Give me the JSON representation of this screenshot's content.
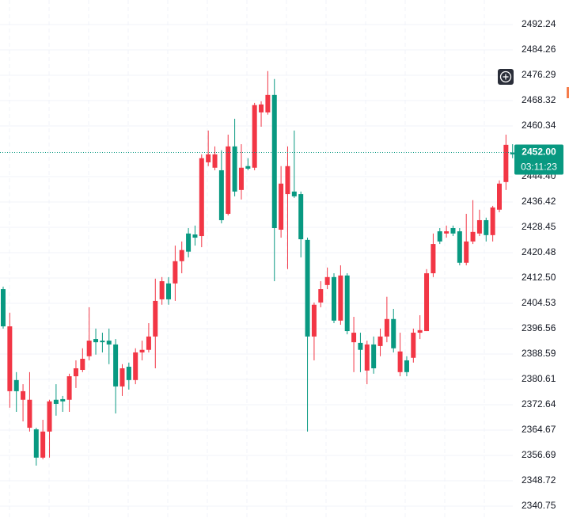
{
  "chart_data": {
    "type": "candlestick",
    "up_color": "#089981",
    "down_color": "#f23645",
    "open": [
      2397.3,
      2397.3,
      2376.9,
      2376.9,
      2374.2,
      2356.0,
      2364.2,
      2373.7,
      2372.9,
      2373.7,
      2381.6,
      2384.1,
      2387.1,
      2392.8,
      2392.3,
      2392.3,
      2391.6,
      2378.4,
      2384.1,
      2380.4,
      2389.1,
      2389.9,
      2394.1,
      2405.3,
      2411.5,
      2405.8,
      2417.8,
      2421.3,
      2420.8,
      2425.2,
      2450.2,
      2451.4,
      2451.4,
      2430.7,
      2453.9,
      2439.7,
      2447.2,
      2446.9,
      2466.9,
      2467.1,
      2470.1,
      2428.2,
      2442.2,
      2447.7,
      2438.2,
      2424.7,
      2394.1,
      2404.1,
      2409.0,
      2412.8,
      2399.1,
      2413.3,
      2395.8,
      2395.3,
      2389.9,
      2391.6,
      2384.1,
      2394.1,
      2399.6,
      2390.4,
      2389.4,
      2382.9,
      2395.3,
      2396.1,
      2414.0,
      2423.2,
      2424.0,
      2427.2,
      2426.5,
      2417.3,
      2424.0,
      2427.0,
      2430.7,
      2426.0,
      2434.7,
      2442.2,
      2454.4,
      2451.4
    ],
    "high": [
      2409.8,
      2401.6,
      2382.9,
      2379.1,
      2382.9,
      2365.4,
      2367.9,
      2374.2,
      2379.1,
      2375.4,
      2382.4,
      2386.6,
      2390.4,
      2403.3,
      2396.6,
      2395.3,
      2396.6,
      2393.3,
      2385.4,
      2385.9,
      2390.4,
      2392.8,
      2398.3,
      2412.3,
      2412.8,
      2412.8,
      2422.7,
      2424.0,
      2428.2,
      2429.0,
      2451.4,
      2458.9,
      2453.9,
      2452.7,
      2457.6,
      2462.6,
      2454.6,
      2450.2,
      2467.6,
      2468.1,
      2477.6,
      2475.1,
      2447.7,
      2453.9,
      2458.9,
      2439.7,
      2425.2,
      2404.8,
      2411.5,
      2415.8,
      2414.0,
      2416.5,
      2414.0,
      2400.3,
      2395.3,
      2392.8,
      2394.1,
      2396.6,
      2406.6,
      2402.8,
      2395.3,
      2387.9,
      2396.6,
      2400.8,
      2415.3,
      2426.5,
      2428.2,
      2429.0,
      2429.0,
      2428.2,
      2432.7,
      2437.0,
      2434.0,
      2431.5,
      2435.2,
      2443.2,
      2457.6,
      2454.6
    ],
    "low": [
      2396.6,
      2371.7,
      2370.4,
      2367.4,
      2364.2,
      2353.5,
      2355.5,
      2356.0,
      2369.2,
      2370.4,
      2370.4,
      2377.9,
      2382.9,
      2386.6,
      2388.4,
      2389.1,
      2385.4,
      2369.9,
      2375.4,
      2377.4,
      2379.1,
      2386.6,
      2389.1,
      2384.1,
      2404.1,
      2404.1,
      2405.3,
      2414.0,
      2419.0,
      2422.7,
      2422.2,
      2447.7,
      2446.4,
      2429.7,
      2432.2,
      2438.2,
      2437.2,
      2446.4,
      2446.4,
      2460.1,
      2463.9,
      2411.5,
      2425.2,
      2415.3,
      2437.7,
      2419.0,
      2364.2,
      2386.6,
      2403.3,
      2409.0,
      2398.3,
      2397.8,
      2394.8,
      2382.9,
      2382.9,
      2379.1,
      2382.4,
      2387.9,
      2392.3,
      2389.1,
      2381.6,
      2381.6,
      2385.9,
      2393.3,
      2395.8,
      2412.8,
      2423.2,
      2425.2,
      2425.7,
      2416.5,
      2416.5,
      2423.2,
      2425.7,
      2424.0,
      2424.0,
      2433.2,
      2440.2,
      2450.2
    ],
    "close": [
      2409.0,
      2376.9,
      2380.4,
      2374.2,
      2365.4,
      2364.9,
      2356.0,
      2364.2,
      2374.2,
      2374.4,
      2374.2,
      2381.6,
      2383.6,
      2387.9,
      2393.3,
      2392.8,
      2392.8,
      2391.6,
      2378.4,
      2384.6,
      2380.4,
      2389.1,
      2389.9,
      2394.1,
      2405.8,
      2410.8,
      2410.8,
      2417.8,
      2426.5,
      2426.2,
      2425.7,
      2448.9,
      2447.2,
      2446.4,
      2432.7,
      2453.9,
      2440.2,
      2447.7,
      2447.2,
      2464.6,
      2464.6,
      2470.1,
      2427.7,
      2438.9,
      2439.7,
      2438.9,
      2424.5,
      2394.1,
      2404.8,
      2410.3,
      2412.8,
      2399.1,
      2413.3,
      2392.3,
      2392.1,
      2383.4,
      2391.6,
      2391.1,
      2394.1,
      2399.6,
      2382.9,
      2386.6,
      2387.4,
      2395.3,
      2395.8,
      2414.0,
      2427.2,
      2426.5,
      2428.2,
      2427.2,
      2417.3,
      2424.0,
      2426.5,
      2430.7,
      2426.0,
      2434.0,
      2442.7,
      2452.0
    ],
    "ylim": [
      2337.01,
      2499.96
    ],
    "yticks": [
      2340.75,
      2348.72,
      2356.69,
      2364.67,
      2372.64,
      2380.61,
      2388.59,
      2396.56,
      2404.53,
      {
        "value": 2412.5,
        "label": "2412.50"
      },
      2420.48,
      2428.45,
      2436.42,
      {
        "value": 2444.4,
        "label": "2444.40"
      },
      2460.34,
      2468.32,
      2476.29,
      2484.26,
      2492.24
    ],
    "grid": true,
    "last_price": {
      "value": 2452,
      "label": "2452.00"
    },
    "countdown": "03:11:23"
  }
}
